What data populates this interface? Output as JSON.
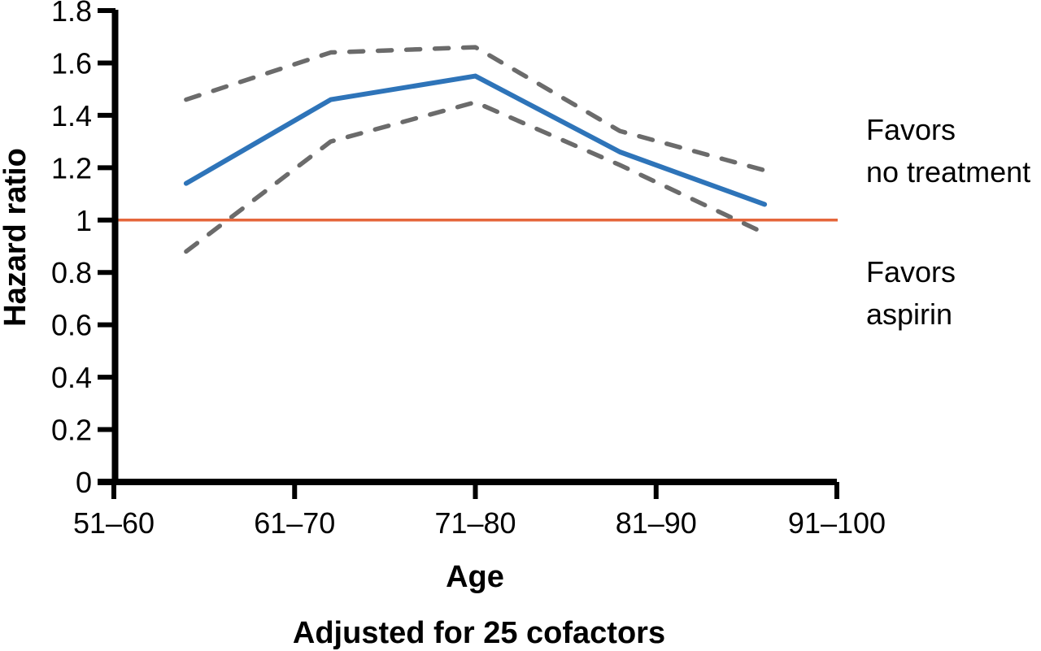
{
  "figure": {
    "background": "#ffffff",
    "text_color": "#000000",
    "axis_color": "#000000"
  },
  "chart_data": {
    "type": "line",
    "title": "",
    "xlabel": "Age",
    "ylabel": "Hazard ratio",
    "footnote": "Adjusted for 25 cofactors",
    "categories": [
      "51–60",
      "61–70",
      "71–80",
      "81–90",
      "91–100"
    ],
    "ylim": [
      0,
      1.8
    ],
    "y_ticks": [
      {
        "value": 1.8,
        "label": "1.8"
      },
      {
        "value": 1.6,
        "label": "1.6"
      },
      {
        "value": 1.4,
        "label": "1.4"
      },
      {
        "value": 1.2,
        "label": "1.2"
      },
      {
        "value": 1.0,
        "label": "1"
      },
      {
        "value": 0.8,
        "label": "0.8"
      },
      {
        "value": 0.6,
        "label": "0.6"
      },
      {
        "value": 0.4,
        "label": "0.4"
      },
      {
        "value": 0.2,
        "label": "0.2"
      },
      {
        "value": 0.0,
        "label": "0"
      }
    ],
    "series": [
      {
        "name": "upper-confidence-limit",
        "style": "dashed",
        "color": "#6B6B6B",
        "values": [
          1.46,
          1.64,
          1.66,
          1.34,
          1.19
        ]
      },
      {
        "name": "lower-confidence-limit",
        "style": "dashed",
        "color": "#6B6B6B",
        "values": [
          0.88,
          1.3,
          1.45,
          1.21,
          0.95
        ]
      },
      {
        "name": "hazard-ratio",
        "style": "solid",
        "color": "#2E74B9",
        "values": [
          1.14,
          1.46,
          1.55,
          1.26,
          1.06
        ]
      }
    ],
    "reference_line": {
      "value": 1,
      "color": "#E5663B"
    },
    "annotations": [
      {
        "lines": [
          "Favors",
          "no treatment"
        ]
      },
      {
        "lines": [
          "Favors",
          "aspirin"
        ]
      }
    ],
    "grid": false,
    "legend": false
  }
}
